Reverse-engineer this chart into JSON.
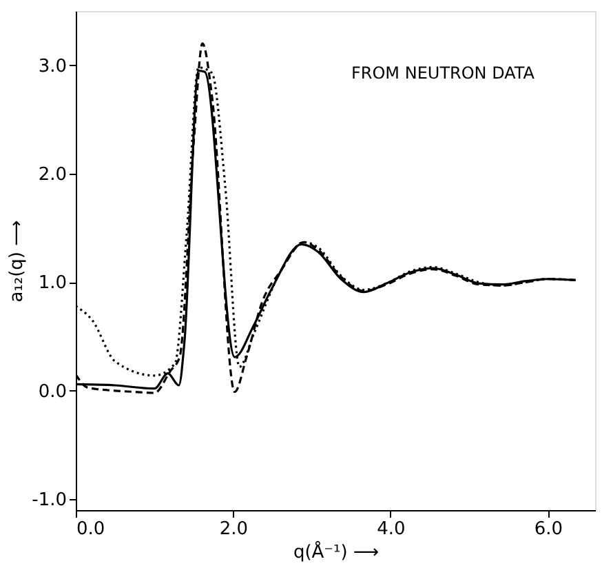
{
  "chart_data": {
    "type": "line",
    "xlabel": "q(Å⁻¹) ⟶",
    "ylabel": "a₁₂(q) ⟶",
    "annotations": [
      "FROM NEUTRON DATA"
    ],
    "xlim": [
      0,
      6.6
    ],
    "ylim": [
      -1.1,
      3.5
    ],
    "xticks": [
      {
        "value": 0,
        "label": "0.0"
      },
      {
        "value": 2,
        "label": "2.0"
      },
      {
        "value": 4,
        "label": "4.0"
      },
      {
        "value": 6,
        "label": "6.0"
      }
    ],
    "yticks": [
      {
        "value": -1,
        "label": "-1.0"
      },
      {
        "value": 0,
        "label": "0.0"
      },
      {
        "value": 1,
        "label": "1.0"
      },
      {
        "value": 2,
        "label": "2.0"
      },
      {
        "value": 3,
        "label": "3.0"
      }
    ],
    "grid": false,
    "marker": "none",
    "series": [
      {
        "color": "#000000",
        "line_style": "solid",
        "x": [
          0,
          0.5,
          1.0,
          1.17,
          1.31,
          1.38,
          1.56,
          1.64,
          2.02,
          2.26,
          2.49,
          2.87,
          3.08,
          3.37,
          3.66,
          3.95,
          4.25,
          4.54,
          4.83,
          5.12,
          5.42,
          5.71,
          6.0,
          6.35
        ],
        "values": [
          0.06,
          0.05,
          0.02,
          0.16,
          0.05,
          0.44,
          2.95,
          2.94,
          0.31,
          0.6,
          0.94,
          1.35,
          1.28,
          1.03,
          0.91,
          0.99,
          1.09,
          1.13,
          1.07,
          0.99,
          0.98,
          1.01,
          1.03,
          1.02
        ]
      },
      {
        "color": "#000000",
        "line_style": "dashed",
        "x": [
          0,
          0.15,
          0.5,
          0.74,
          1.0,
          1.2,
          1.32,
          1.5,
          1.61,
          1.73,
          2.02,
          2.17,
          2.37,
          2.61,
          2.9,
          3.08,
          3.37,
          3.66,
          3.95,
          4.25,
          4.54,
          4.83,
          5.12,
          5.42,
          5.71,
          6.0,
          6.35
        ],
        "values": [
          0.15,
          0.03,
          0.0,
          -0.01,
          -0.02,
          0.18,
          0.31,
          2.3,
          3.2,
          2.72,
          -0.01,
          0.31,
          0.82,
          1.11,
          1.37,
          1.3,
          1.05,
          0.92,
          0.98,
          1.08,
          1.12,
          1.06,
          0.98,
          0.97,
          1.0,
          1.03,
          1.02
        ]
      },
      {
        "color": "#000000",
        "line_style": "dotted",
        "x": [
          0,
          0.21,
          0.5,
          1.0,
          1.26,
          1.41,
          1.56,
          1.73,
          1.9,
          2.08,
          2.26,
          2.61,
          2.9,
          3.08,
          3.37,
          3.66,
          3.95,
          4.25,
          4.54,
          4.83,
          5.12,
          5.42,
          5.71,
          6.0,
          6.35
        ],
        "values": [
          0.78,
          0.65,
          0.27,
          0.14,
          0.25,
          1.45,
          2.98,
          2.93,
          1.88,
          0.22,
          0.52,
          1.11,
          1.37,
          1.32,
          1.06,
          0.93,
          0.99,
          1.1,
          1.14,
          1.08,
          1.0,
          0.97,
          1.0,
          1.03,
          1.02
        ]
      }
    ]
  }
}
